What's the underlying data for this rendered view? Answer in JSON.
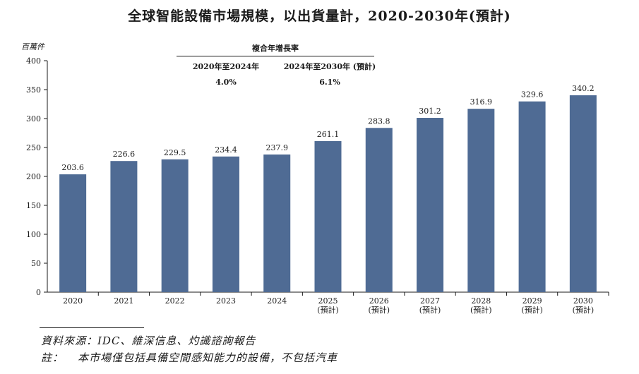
{
  "title": "全球智能設備市場規模，以出貨量計，2020-2030年(預計)",
  "chart_data": {
    "type": "bar",
    "ylabel": "百萬件",
    "categories": [
      "2020",
      "2021",
      "2022",
      "2023",
      "2024",
      "2025",
      "2026",
      "2027",
      "2028",
      "2029",
      "2030"
    ],
    "category_sublabels": [
      "",
      "",
      "",
      "",
      "",
      "(預計)",
      "(預計)",
      "(預計)",
      "(預計)",
      "(預計)",
      "(預計)"
    ],
    "values": [
      203.6,
      226.6,
      229.5,
      234.4,
      237.9,
      261.1,
      283.8,
      301.2,
      316.9,
      329.6,
      340.2
    ],
    "value_labels": [
      "203.6",
      "226.6",
      "229.5",
      "234.4",
      "237.9",
      "261.1",
      "283.8",
      "301.2",
      "316.9",
      "329.6",
      "340.2"
    ],
    "ylim": [
      0,
      400
    ],
    "yticks": [
      "0",
      "50",
      "100",
      "150",
      "200",
      "250",
      "300",
      "350",
      "400"
    ],
    "bar_color": "#4f6b94",
    "grid": false
  },
  "cagr": {
    "header": "複合年增長率",
    "periods": [
      {
        "label": "2020年至2024年",
        "value": "4.0%"
      },
      {
        "label": "2024年至2030年 (預計)",
        "value": "6.1%"
      }
    ]
  },
  "footnotes": {
    "source": "資料來源：IDC、維深信息、灼識諮詢報告",
    "note_label": "註：",
    "note_text": "本市場僅包括具備空間感知能力的設備，不包括汽車"
  }
}
